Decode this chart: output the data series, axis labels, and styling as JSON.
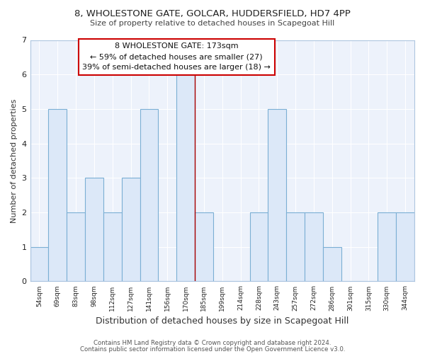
{
  "title1": "8, WHOLESTONE GATE, GOLCAR, HUDDERSFIELD, HD7 4PP",
  "title2": "Size of property relative to detached houses in Scapegoat Hill",
  "xlabel": "Distribution of detached houses by size in Scapegoat Hill",
  "ylabel": "Number of detached properties",
  "bar_labels": [
    "54sqm",
    "69sqm",
    "83sqm",
    "98sqm",
    "112sqm",
    "127sqm",
    "141sqm",
    "156sqm",
    "170sqm",
    "185sqm",
    "199sqm",
    "214sqm",
    "228sqm",
    "243sqm",
    "257sqm",
    "272sqm",
    "286sqm",
    "301sqm",
    "315sqm",
    "330sqm",
    "344sqm"
  ],
  "bar_values": [
    1,
    5,
    2,
    3,
    2,
    3,
    5,
    0,
    6,
    2,
    0,
    0,
    2,
    5,
    2,
    2,
    1,
    0,
    0,
    2,
    2
  ],
  "bar_fill_color": "#dce8f8",
  "bar_edge_color": "#7bafd4",
  "highlight_index": 8,
  "highlight_line_color": "#aa0000",
  "ylim": [
    0,
    7
  ],
  "yticks": [
    0,
    1,
    2,
    3,
    4,
    5,
    6,
    7
  ],
  "annotation_title": "8 WHOLESTONE GATE: 173sqm",
  "annotation_line1": "← 59% of detached houses are smaller (27)",
  "annotation_line2": "39% of semi-detached houses are larger (18) →",
  "annotation_box_facecolor": "#ffffff",
  "annotation_box_edgecolor": "#cc0000",
  "footer1": "Contains HM Land Registry data © Crown copyright and database right 2024.",
  "footer2": "Contains public sector information licensed under the Open Government Licence v3.0.",
  "background_color": "#ffffff",
  "plot_bg_color": "#edf2fb",
  "grid_color": "#ffffff",
  "spine_color": "#aec6e0"
}
